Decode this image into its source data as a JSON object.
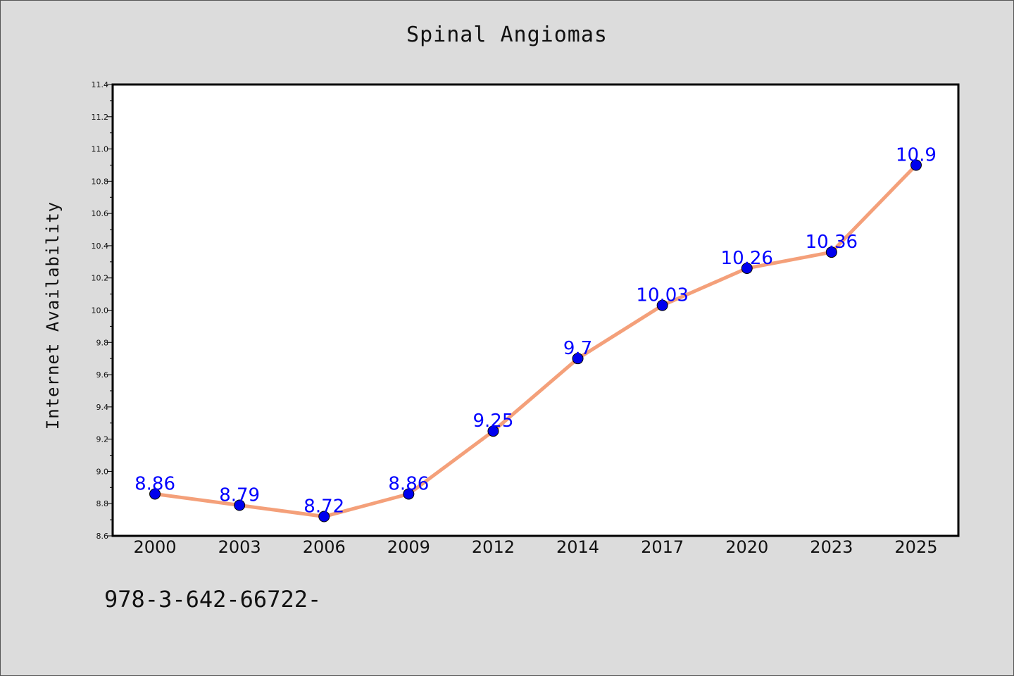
{
  "chart_data": {
    "type": "line",
    "title": "Spinal Angiomas",
    "xlabel": "",
    "ylabel": "Internet Availability",
    "categories": [
      "2000",
      "2003",
      "2006",
      "2009",
      "2012",
      "2014",
      "2017",
      "2020",
      "2023",
      "2025"
    ],
    "series": [
      {
        "values": [
          8.86,
          8.79,
          8.72,
          8.86,
          9.25,
          9.7,
          10.03,
          10.26,
          10.36,
          10.9
        ]
      }
    ],
    "data_labels": [
      "8.86",
      "8.79",
      "8.72",
      "8.86",
      "9.25",
      "9.7",
      "10.03",
      "10.26",
      "10.36",
      "10.9"
    ],
    "ylim": [
      8.6,
      11.4
    ],
    "yticks": [
      "8.6",
      "8.8",
      "9.0",
      "9.2",
      "9.4",
      "9.6",
      "9.8",
      "10.0",
      "10.2",
      "10.4",
      "10.6",
      "10.8",
      "11.0",
      "11.2",
      "11.4"
    ],
    "grid": false,
    "legend": "none",
    "colors": {
      "line": "#f4a07a",
      "marker_fill": "#0000ee",
      "data_label": "#0000ff",
      "plot_background": "#ffffff",
      "page_background": "#dcdcdc"
    }
  },
  "footer_text": "978-3-642-66722-"
}
